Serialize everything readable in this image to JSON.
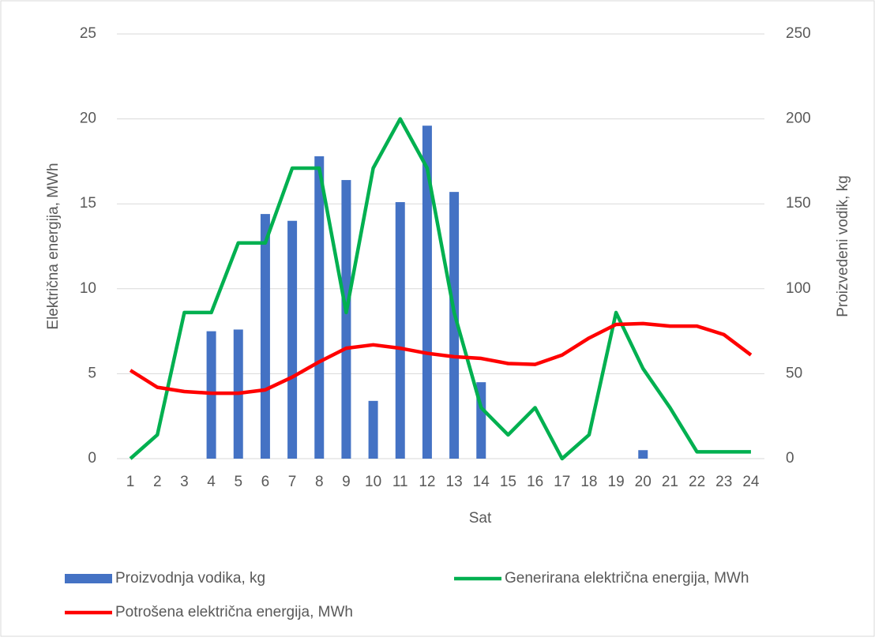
{
  "chart_data": {
    "type": "combo",
    "x_label": "Sat",
    "y_label": "Električna energija, MWh",
    "y2_label": "Proizvedeni vodik, kg",
    "categories": [
      "1",
      "2",
      "3",
      "4",
      "5",
      "6",
      "7",
      "8",
      "9",
      "10",
      "11",
      "12",
      "13",
      "14",
      "15",
      "16",
      "17",
      "18",
      "19",
      "20",
      "21",
      "22",
      "23",
      "24"
    ],
    "ylim": [
      0,
      25
    ],
    "yticks": [
      0,
      5,
      10,
      15,
      20,
      25
    ],
    "y2lim": [
      0,
      250
    ],
    "y2ticks": [
      0,
      50,
      100,
      150,
      200,
      250
    ],
    "grid": true,
    "legend": "bottom",
    "series": [
      {
        "name": "Proizvodnja vodika, kg",
        "type": "bar",
        "axis": "y2",
        "color": "#4472c4",
        "values": [
          0,
          0,
          0,
          75,
          76,
          144,
          140,
          178,
          164,
          34,
          151,
          196,
          157,
          45,
          0,
          0,
          0,
          0,
          0,
          5,
          0,
          0,
          0,
          0
        ]
      },
      {
        "name": "Generirana električna energija, MWh",
        "type": "line",
        "color": "#00b050",
        "values": [
          0,
          1.4,
          8.6,
          8.6,
          12.7,
          12.7,
          17.1,
          17.1,
          8.6,
          17.1,
          20,
          17.1,
          8.6,
          3,
          1.4,
          3,
          0,
          1.4,
          8.6,
          5.3,
          3,
          0.4,
          0.4,
          0.4
        ]
      },
      {
        "name": "Potrošena električna energija, MWh",
        "type": "line",
        "color": "#ff0000",
        "values": [
          5.2,
          4.2,
          3.95,
          3.85,
          3.85,
          4.05,
          4.8,
          5.7,
          6.5,
          6.7,
          6.5,
          6.2,
          6.0,
          5.9,
          5.6,
          5.55,
          6.1,
          7.1,
          7.9,
          7.95,
          7.8,
          7.8,
          7.3,
          6.1
        ]
      }
    ]
  }
}
